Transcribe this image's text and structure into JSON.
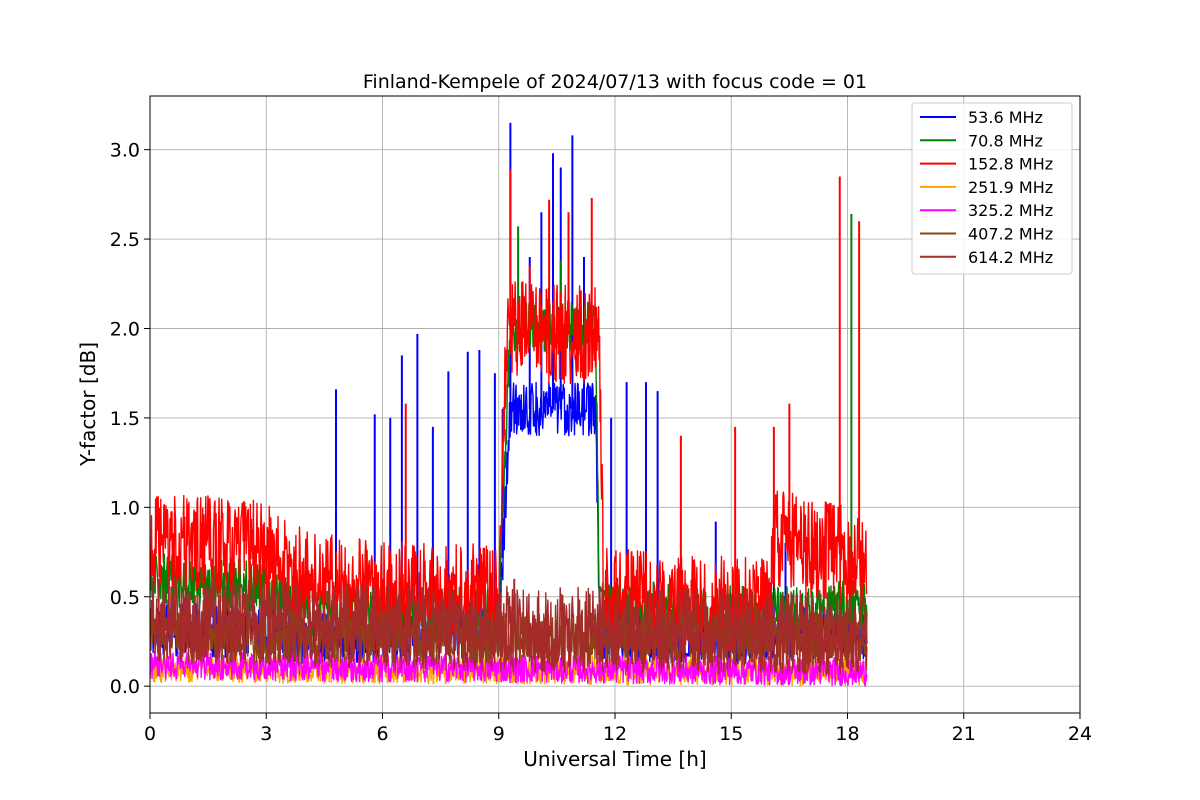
{
  "chart_data": {
    "type": "line",
    "title": "Finland-Kempele of 2024/07/13 with focus code = 01",
    "xlabel": "Universal Time [h]",
    "ylabel": "Y-factor [dB]",
    "xlim": [
      0,
      24
    ],
    "ylim": [
      -0.15,
      3.3
    ],
    "xticks": [
      0,
      3,
      6,
      9,
      12,
      15,
      18,
      21,
      24
    ],
    "xtick_labels": [
      "0",
      "3",
      "6",
      "9",
      "12",
      "15",
      "18",
      "21",
      "24"
    ],
    "yticks": [
      0.0,
      0.5,
      1.0,
      1.5,
      2.0,
      2.5,
      3.0
    ],
    "ytick_labels": [
      "0.0",
      "0.5",
      "1.0",
      "1.5",
      "2.0",
      "2.5",
      "3.0"
    ],
    "grid": true,
    "legend_position": "top-right",
    "data_end_hour": 18.5,
    "series": [
      {
        "name": " 53.6 MHz",
        "color": "#0000ff",
        "baseline": [
          [
            0,
            0.32
          ],
          [
            3,
            0.3
          ],
          [
            4,
            0.26
          ],
          [
            6,
            0.28
          ],
          [
            9,
            0.3
          ],
          [
            9.3,
            1.55
          ],
          [
            11.5,
            1.55
          ],
          [
            11.6,
            0.3
          ],
          [
            15,
            0.25
          ],
          [
            16,
            0.3
          ],
          [
            18.5,
            0.3
          ]
        ],
        "noise": 0.15,
        "spikes": [
          [
            4.8,
            1.66
          ],
          [
            5.8,
            1.52
          ],
          [
            6.2,
            1.5
          ],
          [
            6.5,
            1.85
          ],
          [
            6.9,
            1.97
          ],
          [
            7.3,
            1.45
          ],
          [
            7.7,
            1.76
          ],
          [
            8.2,
            1.87
          ],
          [
            8.5,
            1.88
          ],
          [
            8.9,
            1.75
          ],
          [
            9.1,
            1.55
          ],
          [
            9.3,
            3.15
          ],
          [
            9.8,
            2.4
          ],
          [
            10.1,
            2.65
          ],
          [
            10.4,
            2.98
          ],
          [
            10.6,
            2.9
          ],
          [
            10.9,
            3.08
          ],
          [
            11.2,
            2.4
          ],
          [
            11.9,
            1.5
          ],
          [
            12.3,
            1.7
          ],
          [
            12.8,
            1.7
          ],
          [
            13.1,
            1.65
          ],
          [
            14.6,
            0.92
          ],
          [
            16.1,
            0.7
          ],
          [
            16.4,
            0.8
          ]
        ]
      },
      {
        "name": " 70.8 MHz",
        "color": "#008000",
        "baseline": [
          [
            0,
            0.6
          ],
          [
            3,
            0.55
          ],
          [
            4,
            0.42
          ],
          [
            9,
            0.4
          ],
          [
            9.3,
            2.0
          ],
          [
            11.5,
            2.0
          ],
          [
            11.6,
            0.45
          ],
          [
            16,
            0.4
          ],
          [
            18.5,
            0.45
          ]
        ],
        "noise": 0.15,
        "spikes": [
          [
            9.5,
            2.57
          ],
          [
            10.6,
            2.38
          ],
          [
            18.1,
            2.64
          ]
        ]
      },
      {
        "name": " 152.8 MHz",
        "color": "#ff0000",
        "baseline": [
          [
            0,
            0.78
          ],
          [
            1,
            0.8
          ],
          [
            3,
            0.76
          ],
          [
            3.7,
            0.62
          ],
          [
            5,
            0.55
          ],
          [
            7,
            0.52
          ],
          [
            9,
            0.52
          ],
          [
            9.2,
            2.0
          ],
          [
            11.6,
            1.95
          ],
          [
            11.7,
            0.5
          ],
          [
            14,
            0.45
          ],
          [
            15,
            0.45
          ],
          [
            16,
            0.48
          ],
          [
            16.1,
            0.82
          ],
          [
            17,
            0.78
          ],
          [
            18.5,
            0.7
          ]
        ],
        "noise": 0.28,
        "spikes": [
          [
            6.6,
            1.58
          ],
          [
            9.3,
            2.89
          ],
          [
            9.8,
            2.35
          ],
          [
            10.3,
            2.72
          ],
          [
            10.8,
            2.65
          ],
          [
            11.4,
            2.73
          ],
          [
            13.7,
            1.4
          ],
          [
            15.1,
            1.45
          ],
          [
            16.1,
            1.45
          ],
          [
            16.5,
            1.58
          ],
          [
            17.8,
            2.85
          ],
          [
            18.3,
            2.6
          ]
        ]
      },
      {
        "name": " 251.9 MHz",
        "color": "#ffa500",
        "baseline": [
          [
            0,
            0.1
          ],
          [
            9,
            0.09
          ],
          [
            18.5,
            0.08
          ]
        ],
        "noise": 0.08,
        "spikes": []
      },
      {
        "name": " 325.2 MHz",
        "color": "#ff00ff",
        "baseline": [
          [
            0,
            0.12
          ],
          [
            3,
            0.11
          ],
          [
            9,
            0.1
          ],
          [
            18.5,
            0.08
          ]
        ],
        "noise": 0.08,
        "spikes": []
      },
      {
        "name": " 407.2 MHz",
        "color": "#8b4513",
        "baseline": [
          [
            0,
            0.28
          ],
          [
            9,
            0.27
          ],
          [
            18.5,
            0.26
          ]
        ],
        "noise": 0.15,
        "spikes": []
      },
      {
        "name": " 614.2 MHz",
        "color": "#a52a2a",
        "baseline": [
          [
            0,
            0.38
          ],
          [
            3,
            0.35
          ],
          [
            9,
            0.32
          ],
          [
            18.5,
            0.3
          ]
        ],
        "noise": 0.24,
        "spikes": [
          [
            9.4,
            0.6
          ],
          [
            11.6,
            0.55
          ]
        ]
      }
    ]
  }
}
